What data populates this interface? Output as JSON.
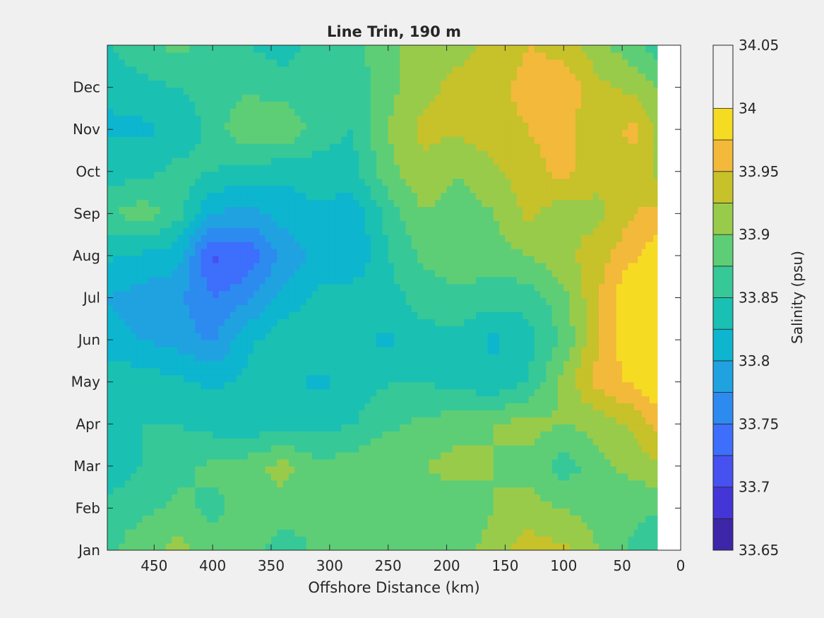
{
  "chart_data": {
    "type": "heatmap",
    "subtype": "filled-contour",
    "title": "Line Trin, 190 m",
    "xlabel": "Offshore Distance (km)",
    "ylabel": "",
    "x_reversed": true,
    "xlim": [
      0,
      490
    ],
    "x_ticks": [
      450,
      400,
      350,
      300,
      250,
      200,
      150,
      100,
      50,
      0
    ],
    "y_ticks": [
      "Jan",
      "Feb",
      "Mar",
      "Apr",
      "May",
      "Jun",
      "Jul",
      "Aug",
      "Sep",
      "Oct",
      "Nov",
      "Dec"
    ],
    "colorbar": {
      "label": "Salinity (psu)",
      "min": 33.65,
      "max": 34.05,
      "step": 0.025,
      "tick_values": [
        33.65,
        33.7,
        33.75,
        33.8,
        33.85,
        33.9,
        33.95,
        34,
        34.05
      ],
      "tick_labels": [
        "33.65",
        "33.7",
        "33.75",
        "33.8",
        "33.85",
        "33.9",
        "33.95",
        "34",
        "34.05"
      ],
      "colors": [
        "#3e26a8",
        "#4435d6",
        "#4651f0",
        "#3d6efc",
        "#2d8bf0",
        "#20a2e1",
        "#0db5cf",
        "#1ac0b2",
        "#37c898",
        "#5ece76",
        "#99cb4b",
        "#c7c12a",
        "#f3b93b",
        "#f6db23"
      ]
    },
    "x": [
      490,
      460,
      430,
      400,
      370,
      340,
      310,
      280,
      250,
      220,
      190,
      160,
      130,
      100,
      70,
      40,
      20
    ],
    "y": [
      "Jan",
      "Feb",
      "Mar",
      "Apr",
      "May",
      "Jun",
      "Jul",
      "Aug",
      "Sep",
      "Oct",
      "Nov",
      "Dec",
      "Jan"
    ],
    "data_range_x": [
      20,
      490
    ],
    "z": [
      [
        33.87,
        33.89,
        33.91,
        33.88,
        33.89,
        33.86,
        33.88,
        33.9,
        33.89,
        33.9,
        33.89,
        33.91,
        33.94,
        33.93,
        33.9,
        33.87,
        33.85
      ],
      [
        33.86,
        33.87,
        33.88,
        33.87,
        33.88,
        33.89,
        33.88,
        33.9,
        33.9,
        33.89,
        33.88,
        33.9,
        33.91,
        33.9,
        33.89,
        33.88,
        33.88
      ],
      [
        33.83,
        33.85,
        33.87,
        33.88,
        33.89,
        33.91,
        33.88,
        33.89,
        33.9,
        33.9,
        33.91,
        33.9,
        33.89,
        33.86,
        33.89,
        33.91,
        33.92
      ],
      [
        33.84,
        33.85,
        33.85,
        33.84,
        33.83,
        33.84,
        33.84,
        33.85,
        33.87,
        33.88,
        33.89,
        33.9,
        33.91,
        33.9,
        33.91,
        33.93,
        33.96
      ],
      [
        33.84,
        33.84,
        33.83,
        33.82,
        33.83,
        33.83,
        33.82,
        33.83,
        33.85,
        33.85,
        33.84,
        33.83,
        33.85,
        33.91,
        33.96,
        33.98,
        34.0
      ],
      [
        33.81,
        33.8,
        33.79,
        33.77,
        33.82,
        33.84,
        33.84,
        33.83,
        33.82,
        33.84,
        33.84,
        33.82,
        33.84,
        33.88,
        33.95,
        34.0,
        34.03
      ],
      [
        33.8,
        33.79,
        33.78,
        33.75,
        33.77,
        33.81,
        33.83,
        33.84,
        33.84,
        33.86,
        33.87,
        33.86,
        33.86,
        33.89,
        33.95,
        34.01,
        34.03
      ],
      [
        33.83,
        33.82,
        33.81,
        33.72,
        33.73,
        33.78,
        33.81,
        33.8,
        33.85,
        33.88,
        33.89,
        33.89,
        33.9,
        33.92,
        33.94,
        33.97,
        33.99
      ],
      [
        33.87,
        33.89,
        33.86,
        33.8,
        33.79,
        33.81,
        33.82,
        33.81,
        33.86,
        33.9,
        33.88,
        33.9,
        33.93,
        33.91,
        33.92,
        33.95,
        33.96
      ],
      [
        33.84,
        33.84,
        33.86,
        33.85,
        33.84,
        33.83,
        33.84,
        33.84,
        33.89,
        33.92,
        33.9,
        33.92,
        33.94,
        33.96,
        33.93,
        33.94,
        33.92
      ],
      [
        33.82,
        33.82,
        33.83,
        33.86,
        33.9,
        33.9,
        33.86,
        33.85,
        33.9,
        33.93,
        33.93,
        33.94,
        33.95,
        33.96,
        33.93,
        33.96,
        33.92
      ],
      [
        33.83,
        33.84,
        33.85,
        33.86,
        33.87,
        33.86,
        33.86,
        33.86,
        33.89,
        33.92,
        33.93,
        33.94,
        33.96,
        33.97,
        33.93,
        33.92,
        33.9
      ],
      [
        33.85,
        33.87,
        33.88,
        33.87,
        33.85,
        33.84,
        33.86,
        33.87,
        33.89,
        33.92,
        33.92,
        33.93,
        33.95,
        33.94,
        33.91,
        33.88,
        33.86
      ]
    ]
  }
}
